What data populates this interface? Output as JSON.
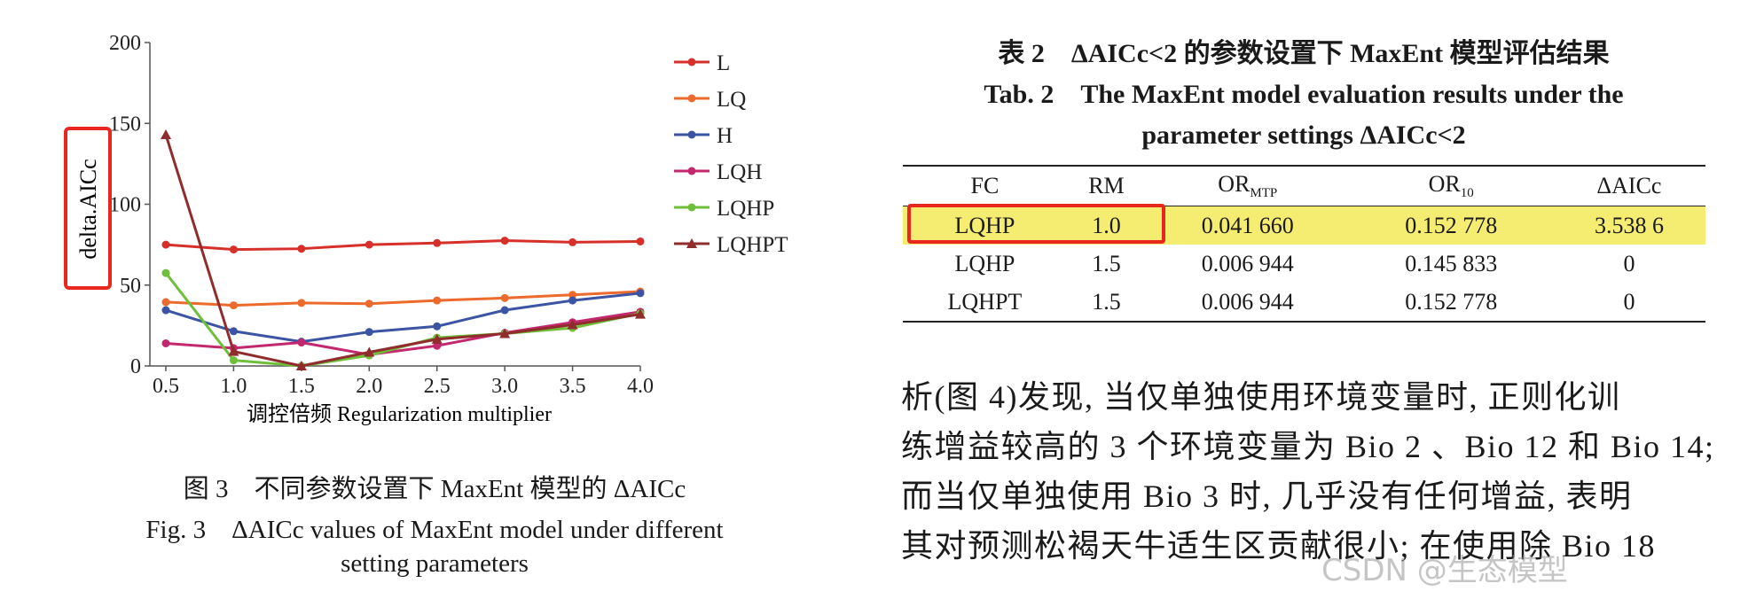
{
  "figure": {
    "caption_cn": "图 3　不同参数设置下 MaxEnt 模型的 ΔAICc",
    "caption_en_line1": "Fig. 3　ΔAICc values of MaxEnt model under different",
    "caption_en_line2": "setting parameters"
  },
  "chart_data": {
    "type": "line",
    "title": "",
    "xlabel": "调控倍频 Regularization multiplier",
    "ylabel": "delta.AICc",
    "x": [
      0.5,
      1.0,
      1.5,
      2.0,
      2.5,
      3.0,
      3.5,
      4.0
    ],
    "x_tick_labels": [
      "0.5",
      "1.0",
      "1.5",
      "2.0",
      "2.5",
      "3.0",
      "3.5",
      "4.0"
    ],
    "y_ticks": [
      0,
      50,
      100,
      150,
      200
    ],
    "y_tick_labels": [
      "0",
      "50",
      "100",
      "150",
      "200"
    ],
    "xlim": [
      0.5,
      4.0
    ],
    "ylim": [
      0,
      200
    ],
    "grid": false,
    "legend_position": "right",
    "series": [
      {
        "name": "L",
        "color": "#d7302a",
        "marker": "circle",
        "values": [
          75,
          72,
          72.5,
          75,
          76,
          77.5,
          76.5,
          77
        ]
      },
      {
        "name": "LQ",
        "color": "#ec6a2c",
        "marker": "circle",
        "values": [
          39.5,
          37.5,
          39,
          38.5,
          40.5,
          42,
          44,
          46
        ]
      },
      {
        "name": "H",
        "color": "#3b54a3",
        "marker": "circle",
        "values": [
          34.5,
          21.5,
          15,
          21,
          24.5,
          34.5,
          40.5,
          45
        ]
      },
      {
        "name": "LQH",
        "color": "#c3286e",
        "marker": "circle",
        "values": [
          14,
          11,
          14.5,
          7,
          12.5,
          20.5,
          27,
          33.5
        ]
      },
      {
        "name": "LQHP",
        "color": "#6fbf3b",
        "marker": "circle",
        "values": [
          57.5,
          3.5,
          0,
          6.5,
          17.5,
          20,
          23.5,
          32.5
        ]
      },
      {
        "name": "LQHPT",
        "color": "#8f2d2c",
        "marker": "triangle",
        "values": [
          143,
          9,
          0,
          8.5,
          16.5,
          20,
          25.5,
          32
        ]
      }
    ]
  },
  "table": {
    "caption_cn": "表 2　ΔAICc<2 的参数设置下 MaxEnt 模型评估结果",
    "caption_en_line1": "Tab. 2　The MaxEnt model evaluation results under the",
    "caption_en_line2": "parameter settings ΔAICc<2",
    "headers": {
      "fc": "FC",
      "rm": "RM",
      "or_mtp": "OR",
      "or_mtp_sub": "MTP",
      "or10": "OR",
      "or10_sub": "10",
      "daicc": "ΔAICc"
    },
    "rows": [
      [
        "LQHP",
        "1.0",
        "0.041 660",
        "0.152 778",
        "3.538 6"
      ],
      [
        "LQHP",
        "1.5",
        "0.006 944",
        "0.145 833",
        "0"
      ],
      [
        "LQHPT",
        "1.5",
        "0.006 944",
        "0.152 778",
        "0"
      ]
    ],
    "highlight_color": "#f5ec72",
    "annotation_color": "#e8271e"
  },
  "body_text": [
    "析(图 4)发现, 当仅单独使用环境变量时, 正则化训",
    "练增益较高的 3 个环境变量为 Bio 2 、Bio 12 和 Bio 14;",
    "而当仅单独使用 Bio 3 时, 几乎没有任何增益, 表明",
    "其对预测松褐天牛适生区贡献很小; 在使用除 Bio 18"
  ],
  "watermark": "CSDN @生态模型"
}
